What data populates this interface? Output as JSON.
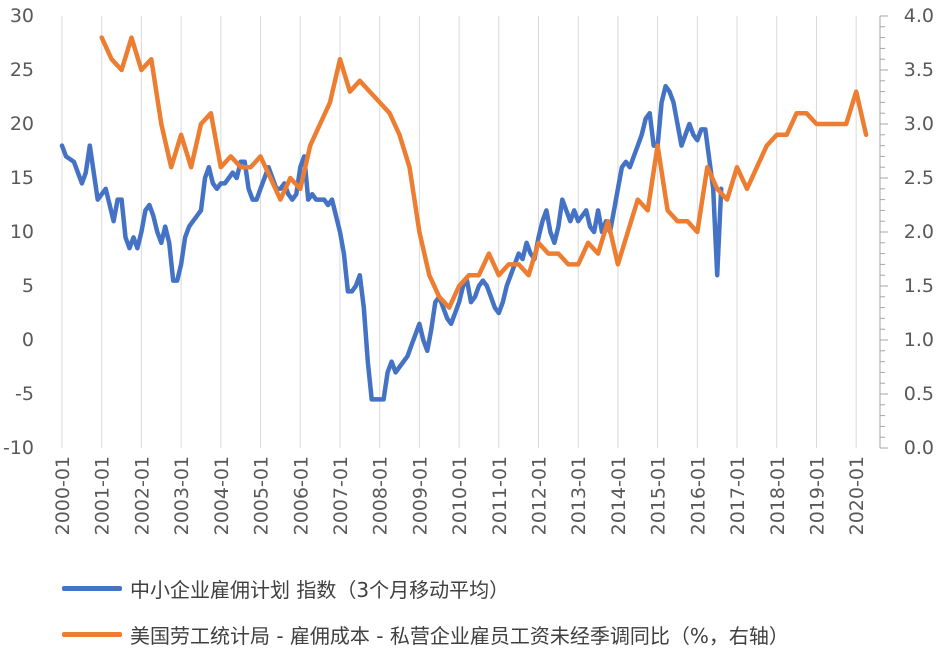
{
  "chart_data": {
    "type": "line",
    "xlabel": "",
    "ylabel_left": "",
    "ylabel_right": "",
    "x_tick_labels": [
      "2000-01",
      "2001-01",
      "2002-01",
      "2003-01",
      "2004-01",
      "2005-01",
      "2006-01",
      "2007-01",
      "2008-01",
      "2009-01",
      "2010-01",
      "2011-01",
      "2012-01",
      "2013-01",
      "2014-01",
      "2015-01",
      "2016-01",
      "2017-01",
      "2018-01",
      "2019-01",
      "2020-01"
    ],
    "y_left": {
      "range": [
        -10,
        30
      ],
      "ticks": [
        "-10",
        "-5",
        "0",
        "5",
        "10",
        "15",
        "20",
        "25",
        "30"
      ]
    },
    "y_right": {
      "range": [
        0.0,
        4.0
      ],
      "ticks": [
        "0.0",
        "0.5",
        "1.0",
        "1.5",
        "2.0",
        "2.5",
        "3.0",
        "3.5",
        "4.0"
      ]
    },
    "x_range": [
      2000.0,
      2020.6
    ],
    "grid": "vertical",
    "legend_position": "bottom",
    "series": [
      {
        "name": "中小企业雇佣计划 指数（3个月移动平均）",
        "axis": "left",
        "color": "#4472C4",
        "points": [
          [
            2000.0,
            18
          ],
          [
            2000.1,
            17
          ],
          [
            2000.3,
            16.5
          ],
          [
            2000.5,
            14.5
          ],
          [
            2000.6,
            15.5
          ],
          [
            2000.7,
            18
          ],
          [
            2000.9,
            13
          ],
          [
            2001.0,
            13.5
          ],
          [
            2001.1,
            14
          ],
          [
            2001.2,
            12.5
          ],
          [
            2001.3,
            11
          ],
          [
            2001.4,
            13
          ],
          [
            2001.5,
            13
          ],
          [
            2001.6,
            9.5
          ],
          [
            2001.7,
            8.5
          ],
          [
            2001.8,
            9.5
          ],
          [
            2001.9,
            8.5
          ],
          [
            2002.0,
            10
          ],
          [
            2002.1,
            12
          ],
          [
            2002.2,
            12.5
          ],
          [
            2002.3,
            11.5
          ],
          [
            2002.4,
            10
          ],
          [
            2002.5,
            9
          ],
          [
            2002.6,
            10.5
          ],
          [
            2002.7,
            9
          ],
          [
            2002.8,
            5.5
          ],
          [
            2002.9,
            5.5
          ],
          [
            2003.0,
            7
          ],
          [
            2003.1,
            9.5
          ],
          [
            2003.2,
            10.5
          ],
          [
            2003.3,
            11
          ],
          [
            2003.4,
            11.5
          ],
          [
            2003.5,
            12
          ],
          [
            2003.6,
            15
          ],
          [
            2003.7,
            16
          ],
          [
            2003.8,
            14.5
          ],
          [
            2003.9,
            14
          ],
          [
            2004.0,
            14.5
          ],
          [
            2004.1,
            14.5
          ],
          [
            2004.2,
            15
          ],
          [
            2004.3,
            15.5
          ],
          [
            2004.4,
            15
          ],
          [
            2004.5,
            16.5
          ],
          [
            2004.6,
            16.5
          ],
          [
            2004.7,
            14
          ],
          [
            2004.8,
            13
          ],
          [
            2004.9,
            13
          ],
          [
            2005.0,
            14
          ],
          [
            2005.1,
            15
          ],
          [
            2005.2,
            16
          ],
          [
            2005.3,
            15
          ],
          [
            2005.4,
            14
          ],
          [
            2005.5,
            14
          ],
          [
            2005.6,
            14.5
          ],
          [
            2005.7,
            13.5
          ],
          [
            2005.8,
            13
          ],
          [
            2005.9,
            13.5
          ],
          [
            2006.0,
            16
          ],
          [
            2006.1,
            17
          ],
          [
            2006.2,
            13
          ],
          [
            2006.3,
            13.5
          ],
          [
            2006.4,
            13
          ],
          [
            2006.5,
            13
          ],
          [
            2006.6,
            13
          ],
          [
            2006.7,
            12.5
          ],
          [
            2006.8,
            13
          ],
          [
            2006.9,
            11.5
          ],
          [
            2007.0,
            10
          ],
          [
            2007.1,
            8
          ],
          [
            2007.2,
            4.5
          ],
          [
            2007.3,
            4.5
          ],
          [
            2007.4,
            5
          ],
          [
            2007.5,
            6
          ],
          [
            2007.6,
            3
          ],
          [
            2007.7,
            -2
          ],
          [
            2007.8,
            -5.5
          ],
          [
            2007.9,
            -5.5
          ],
          [
            2008.0,
            -5.5
          ],
          [
            2008.1,
            -5.5
          ],
          [
            2008.2,
            -3
          ],
          [
            2008.3,
            -2
          ],
          [
            2008.4,
            -3
          ],
          [
            2008.5,
            -2.5
          ],
          [
            2008.6,
            -2
          ],
          [
            2008.7,
            -1.5
          ],
          [
            2008.8,
            -0.5
          ],
          [
            2008.9,
            0.5
          ],
          [
            2009.0,
            1.5
          ],
          [
            2009.1,
            0
          ],
          [
            2009.2,
            -1
          ],
          [
            2009.3,
            1
          ],
          [
            2009.4,
            3.5
          ],
          [
            2009.5,
            4
          ],
          [
            2009.6,
            3
          ],
          [
            2009.7,
            2
          ],
          [
            2009.8,
            1.5
          ],
          [
            2009.9,
            2.5
          ],
          [
            2010.0,
            3.5
          ],
          [
            2010.1,
            5
          ],
          [
            2010.2,
            5.5
          ],
          [
            2010.3,
            3.5
          ],
          [
            2010.4,
            4
          ],
          [
            2010.5,
            5
          ],
          [
            2010.6,
            5.5
          ],
          [
            2010.7,
            5
          ],
          [
            2010.8,
            4
          ],
          [
            2010.9,
            3
          ],
          [
            2011.0,
            2.5
          ],
          [
            2011.1,
            3.5
          ],
          [
            2011.2,
            5
          ],
          [
            2011.3,
            6
          ],
          [
            2011.4,
            7
          ],
          [
            2011.5,
            8
          ],
          [
            2011.6,
            7.5
          ],
          [
            2011.7,
            9
          ],
          [
            2011.8,
            8
          ],
          [
            2011.9,
            7.5
          ],
          [
            2012.0,
            9.5
          ],
          [
            2012.1,
            11
          ],
          [
            2012.2,
            12
          ],
          [
            2012.3,
            10
          ],
          [
            2012.4,
            9
          ],
          [
            2012.5,
            10.5
          ],
          [
            2012.6,
            13
          ],
          [
            2012.7,
            12
          ],
          [
            2012.8,
            11
          ],
          [
            2012.9,
            12
          ],
          [
            2013.0,
            11
          ],
          [
            2013.1,
            11.5
          ],
          [
            2013.2,
            12
          ],
          [
            2013.3,
            10.5
          ],
          [
            2013.4,
            10
          ],
          [
            2013.5,
            12
          ],
          [
            2013.6,
            10
          ],
          [
            2013.7,
            11
          ],
          [
            2013.8,
            10
          ],
          [
            2013.9,
            12
          ],
          [
            2014.0,
            14
          ],
          [
            2014.1,
            16
          ],
          [
            2014.2,
            16.5
          ],
          [
            2014.3,
            16
          ],
          [
            2014.4,
            17
          ],
          [
            2014.5,
            18
          ],
          [
            2014.6,
            19
          ],
          [
            2014.7,
            20.5
          ],
          [
            2014.8,
            21
          ],
          [
            2014.9,
            18
          ],
          [
            2015.0,
            18
          ],
          [
            2015.1,
            22
          ],
          [
            2015.2,
            23.5
          ],
          [
            2015.3,
            23
          ],
          [
            2015.4,
            22
          ],
          [
            2015.5,
            20
          ],
          [
            2015.6,
            18
          ],
          [
            2015.7,
            19
          ],
          [
            2015.8,
            20
          ],
          [
            2015.9,
            19
          ],
          [
            2016.0,
            18.5
          ],
          [
            2016.1,
            19.5
          ],
          [
            2016.2,
            19.5
          ],
          [
            2016.4,
            14
          ],
          [
            2016.5,
            6
          ],
          [
            2016.6,
            14
          ]
        ]
      },
      {
        "name": "美国劳工统计局 - 雇佣成本 - 私营企业雇员工资未经季调同比（%，右轴）",
        "axis": "right",
        "color": "#ED7D31",
        "points": [
          [
            2001.0,
            3.8
          ],
          [
            2001.25,
            3.6
          ],
          [
            2001.5,
            3.5
          ],
          [
            2001.75,
            3.8
          ],
          [
            2002.0,
            3.5
          ],
          [
            2002.25,
            3.6
          ],
          [
            2002.5,
            3.0
          ],
          [
            2002.75,
            2.6
          ],
          [
            2003.0,
            2.9
          ],
          [
            2003.25,
            2.6
          ],
          [
            2003.5,
            3.0
          ],
          [
            2003.75,
            3.1
          ],
          [
            2004.0,
            2.6
          ],
          [
            2004.25,
            2.7
          ],
          [
            2004.5,
            2.6
          ],
          [
            2004.75,
            2.6
          ],
          [
            2005.0,
            2.7
          ],
          [
            2005.25,
            2.5
          ],
          [
            2005.5,
            2.3
          ],
          [
            2005.75,
            2.5
          ],
          [
            2006.0,
            2.4
          ],
          [
            2006.25,
            2.8
          ],
          [
            2006.5,
            3.0
          ],
          [
            2006.75,
            3.2
          ],
          [
            2007.0,
            3.6
          ],
          [
            2007.25,
            3.3
          ],
          [
            2007.5,
            3.4
          ],
          [
            2007.75,
            3.3
          ],
          [
            2008.0,
            3.2
          ],
          [
            2008.25,
            3.1
          ],
          [
            2008.5,
            2.9
          ],
          [
            2008.75,
            2.6
          ],
          [
            2009.0,
            2.0
          ],
          [
            2009.25,
            1.6
          ],
          [
            2009.5,
            1.4
          ],
          [
            2009.75,
            1.3
          ],
          [
            2010.0,
            1.5
          ],
          [
            2010.25,
            1.6
          ],
          [
            2010.5,
            1.6
          ],
          [
            2010.75,
            1.8
          ],
          [
            2011.0,
            1.6
          ],
          [
            2011.25,
            1.7
          ],
          [
            2011.5,
            1.7
          ],
          [
            2011.75,
            1.6
          ],
          [
            2012.0,
            1.9
          ],
          [
            2012.25,
            1.8
          ],
          [
            2012.5,
            1.8
          ],
          [
            2012.75,
            1.7
          ],
          [
            2013.0,
            1.7
          ],
          [
            2013.25,
            1.9
          ],
          [
            2013.5,
            1.8
          ],
          [
            2013.75,
            2.1
          ],
          [
            2014.0,
            1.7
          ],
          [
            2014.25,
            2.0
          ],
          [
            2014.5,
            2.3
          ],
          [
            2014.75,
            2.2
          ],
          [
            2015.0,
            2.8
          ],
          [
            2015.25,
            2.2
          ],
          [
            2015.5,
            2.1
          ],
          [
            2015.75,
            2.1
          ],
          [
            2016.0,
            2.0
          ],
          [
            2016.25,
            2.6
          ],
          [
            2016.5,
            2.4
          ],
          [
            2016.75,
            2.3
          ],
          [
            2017.0,
            2.6
          ],
          [
            2017.25,
            2.4
          ],
          [
            2017.5,
            2.6
          ],
          [
            2017.75,
            2.8
          ],
          [
            2018.0,
            2.9
          ],
          [
            2018.25,
            2.9
          ],
          [
            2018.5,
            3.1
          ],
          [
            2018.75,
            3.1
          ],
          [
            2019.0,
            3.0
          ],
          [
            2019.25,
            3.0
          ],
          [
            2019.5,
            3.0
          ],
          [
            2019.75,
            3.0
          ],
          [
            2020.0,
            3.3
          ],
          [
            2020.25,
            2.9
          ]
        ]
      }
    ]
  }
}
